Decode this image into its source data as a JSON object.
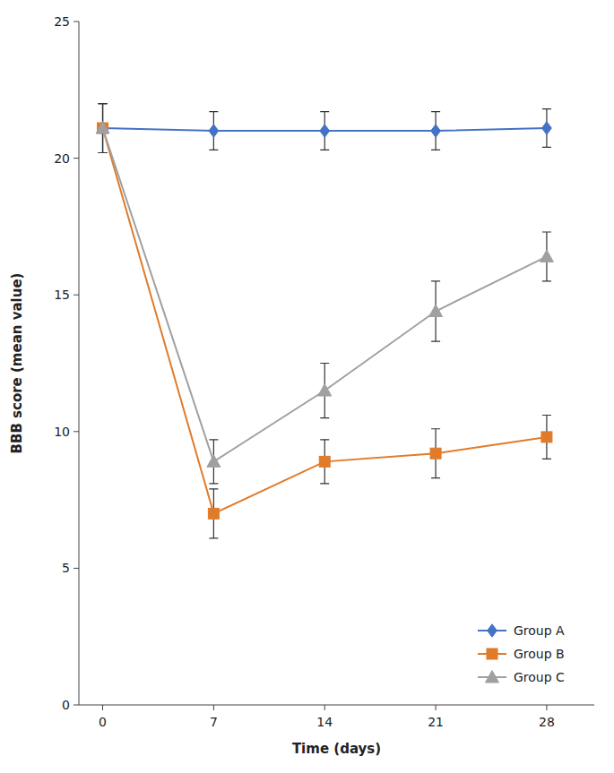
{
  "chart_data": {
    "type": "line",
    "x": [
      0,
      7,
      14,
      21,
      28
    ],
    "series": [
      {
        "name": "Group A",
        "color": "#4472C4",
        "marker": "diamond",
        "values": [
          21.1,
          21.0,
          21.0,
          21.0,
          21.1
        ],
        "errors": [
          0.9,
          0.7,
          0.7,
          0.7,
          0.7
        ]
      },
      {
        "name": "Group B",
        "color": "#E07B2A",
        "marker": "square",
        "values": [
          21.1,
          7.0,
          8.9,
          9.2,
          9.8
        ],
        "errors": [
          0.9,
          0.9,
          0.8,
          0.9,
          0.8
        ]
      },
      {
        "name": "Group C",
        "color": "#A0A0A0",
        "marker": "triangle",
        "values": [
          21.1,
          8.9,
          11.5,
          14.4,
          16.4
        ],
        "errors": [
          0.9,
          0.8,
          1.0,
          1.1,
          0.9
        ]
      }
    ],
    "xlabel": "Time (days)",
    "ylabel": "BBB score (mean value)",
    "xlim": [
      -1.5,
      31
    ],
    "ylim": [
      0,
      25
    ],
    "xticks": [
      0,
      7,
      14,
      21,
      28
    ],
    "yticks": [
      0,
      5,
      10,
      15,
      20,
      25
    ],
    "grid": false,
    "legend": "lower right"
  }
}
